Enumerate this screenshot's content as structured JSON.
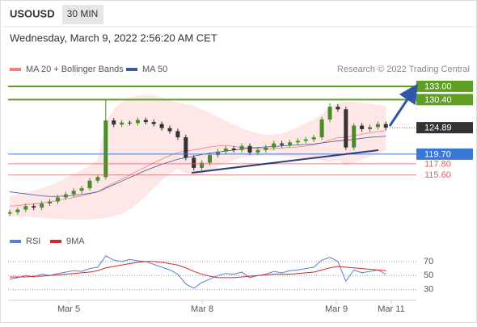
{
  "header": {
    "symbol": "USOUSD",
    "interval": "30 MIN",
    "date": "Wednesday, March 9, 2022 2:56:20 AM CET"
  },
  "chart_data": {
    "type": "candlestick",
    "legend": [
      {
        "name": "MA 20 + Bollinger Bands",
        "color": "#f08080"
      },
      {
        "name": "MA 50",
        "color": "#3d5a99"
      }
    ],
    "credit": "Research © 2022 Trading Central",
    "ylim": [
      107,
      134.1
    ],
    "up_color": "#4a8c2a",
    "down_color": "#333333",
    "open": [
      108.0,
      108.3,
      108.8,
      109.5,
      109.2,
      110.0,
      110.4,
      111.2,
      111.8,
      112.5,
      113.0,
      114.5,
      115.2,
      126.3,
      125.5,
      125.9,
      125.8,
      126.4,
      126.0,
      125.6,
      124.8,
      124.2,
      123.0,
      119.0,
      117.0,
      118.0,
      119.5,
      120.2,
      120.8,
      120.5,
      121.3,
      120.0,
      120.5,
      121.0,
      121.8,
      121.5,
      122.0,
      122.3,
      122.6,
      123.0,
      126.5,
      129.0,
      128.5,
      121.0,
      125.3,
      124.6,
      125.0,
      125.6
    ],
    "close": [
      108.3,
      108.8,
      109.5,
      109.2,
      110.0,
      110.4,
      111.2,
      111.8,
      112.5,
      113.0,
      114.5,
      115.2,
      126.3,
      125.5,
      125.9,
      125.8,
      126.4,
      126.0,
      125.6,
      124.8,
      124.2,
      123.0,
      119.0,
      117.0,
      118.0,
      119.5,
      120.2,
      120.8,
      120.5,
      121.3,
      120.0,
      120.5,
      121.0,
      121.8,
      121.5,
      122.0,
      122.3,
      122.6,
      123.0,
      126.5,
      129.0,
      128.5,
      121.0,
      125.3,
      124.6,
      125.0,
      125.6,
      124.89
    ],
    "high": [
      108.8,
      109.2,
      110.0,
      110.0,
      110.5,
      110.9,
      111.7,
      112.3,
      113.0,
      113.5,
      115.0,
      115.7,
      130.4,
      126.8,
      126.4,
      126.3,
      126.9,
      126.9,
      126.5,
      126.1,
      125.3,
      124.7,
      123.5,
      119.5,
      118.5,
      120.0,
      120.7,
      121.3,
      121.3,
      121.8,
      121.8,
      121.0,
      121.5,
      122.3,
      122.3,
      122.5,
      122.8,
      123.1,
      123.5,
      127.0,
      129.7,
      129.5,
      129.0,
      125.8,
      125.8,
      125.5,
      126.1,
      126.1
    ],
    "low": [
      107.5,
      107.8,
      108.3,
      108.7,
      108.7,
      109.5,
      109.9,
      110.7,
      111.3,
      112.0,
      112.5,
      114.0,
      114.7,
      125.0,
      125.0,
      125.3,
      125.3,
      125.5,
      125.1,
      124.3,
      123.7,
      122.5,
      118.5,
      116.5,
      116.5,
      117.5,
      119.0,
      119.7,
      120.0,
      120.0,
      119.5,
      119.5,
      120.0,
      120.5,
      121.0,
      121.0,
      121.5,
      121.8,
      122.1,
      122.5,
      126.0,
      128.0,
      120.5,
      120.5,
      124.1,
      124.1,
      124.5,
      124.4
    ],
    "ma20": [
      109.5,
      109.6,
      109.8,
      109.9,
      110.1,
      110.3,
      110.6,
      110.9,
      111.2,
      111.5,
      111.9,
      112.3,
      113.2,
      114.0,
      114.8,
      115.6,
      116.4,
      117.2,
      118.0,
      118.7,
      119.4,
      120.0,
      120.3,
      120.5,
      120.8,
      121.1,
      121.3,
      121.4,
      121.2,
      121.0,
      120.9,
      120.8,
      120.7,
      120.8,
      120.9,
      121.0,
      121.1,
      121.3,
      121.5,
      121.9,
      122.5,
      122.9,
      123.0,
      123.3,
      123.6,
      123.9,
      124.1,
      124.3
    ],
    "band_upper": [
      111.5,
      111.8,
      112.2,
      112.5,
      113.0,
      113.5,
      114.2,
      115.0,
      115.8,
      116.5,
      117.5,
      118.5,
      126.0,
      128.5,
      130.0,
      130.8,
      131.2,
      131.3,
      131.2,
      130.8,
      130.3,
      129.8,
      129.5,
      129.2,
      128.5,
      127.8,
      127.0,
      126.2,
      125.5,
      124.8,
      124.2,
      123.8,
      123.5,
      123.5,
      123.8,
      124.3,
      125.0,
      125.8,
      126.5,
      127.5,
      129.0,
      129.8,
      130.0,
      130.0,
      129.8,
      129.6,
      129.4,
      129.2
    ],
    "band_lower": [
      107.5,
      107.4,
      107.4,
      107.3,
      107.2,
      107.1,
      107.0,
      106.9,
      106.8,
      106.8,
      106.9,
      107.0,
      107.2,
      107.5,
      108.0,
      108.8,
      110.0,
      111.5,
      113.0,
      114.5,
      115.8,
      116.8,
      116.0,
      115.5,
      115.8,
      116.5,
      117.3,
      118.0,
      118.5,
      119.0,
      119.2,
      119.3,
      119.4,
      119.4,
      119.3,
      119.2,
      119.0,
      118.8,
      118.6,
      118.4,
      118.2,
      118.5,
      117.5,
      118.0,
      118.6,
      119.2,
      119.8,
      120.4
    ],
    "ma50": [
      112.3,
      112.1,
      111.9,
      111.7,
      111.5,
      111.4,
      111.4,
      111.5,
      111.6,
      111.8,
      112.0,
      112.3,
      113.0,
      113.7,
      114.4,
      115.1,
      115.8,
      116.5,
      117.1,
      117.7,
      118.2,
      118.7,
      119.0,
      119.3,
      119.6,
      119.9,
      120.1,
      120.3,
      120.5,
      120.7,
      120.9,
      121.0,
      121.1,
      121.2,
      121.3,
      121.4,
      121.5,
      121.6,
      121.7,
      121.9,
      122.1,
      122.3,
      122.4,
      122.6,
      122.8,
      123.0,
      123.1,
      123.2
    ],
    "levels": [
      {
        "value": 133,
        "label": "133.00",
        "color": "#5f9e25",
        "boxed": true
      },
      {
        "value": 130.4,
        "label": "130.40",
        "color": "#5f9e25",
        "boxed": true
      },
      {
        "value": 124.89,
        "label": "124.89",
        "color": "#333333",
        "boxed": true
      },
      {
        "value": 119.7,
        "label": "119.70",
        "color": "#3a78d8",
        "boxed": true
      },
      {
        "value": 117.8,
        "label": "117.80",
        "color": "#e06060",
        "boxed": false
      },
      {
        "value": 115.6,
        "label": "115.60",
        "color": "#e06060",
        "boxed": false
      }
    ],
    "x_labels": [
      "Mar 5",
      "Mar 8",
      "Mar 9",
      "Mar 11"
    ],
    "rsi": {
      "legend": [
        {
          "name": "RSI",
          "color": "#5b7fd6"
        },
        {
          "name": "9MA",
          "color": "#d62828"
        }
      ],
      "ylim": [
        17,
        86
      ],
      "yticks": [
        70,
        50,
        30
      ],
      "rsi_values": [
        45,
        47,
        50,
        48,
        52,
        50,
        53,
        55,
        57,
        56,
        60,
        62,
        78,
        72,
        70,
        73,
        71,
        70,
        66,
        62,
        58,
        52,
        38,
        32,
        40,
        45,
        50,
        53,
        52,
        55,
        47,
        50,
        52,
        56,
        54,
        57,
        58,
        60,
        62,
        72,
        76,
        70,
        42,
        58,
        54,
        56,
        58,
        52
      ],
      "ma_values": [
        48,
        48,
        48,
        49,
        49,
        50,
        51,
        52,
        53,
        54,
        55,
        57,
        61,
        63,
        65,
        67,
        69,
        70,
        70,
        69,
        67,
        65,
        61,
        56,
        52,
        49,
        47,
        47,
        47,
        48,
        49,
        50,
        51,
        52,
        52,
        52,
        53,
        54,
        55,
        58,
        61,
        63,
        62,
        61,
        60,
        59,
        58,
        57
      ]
    }
  }
}
